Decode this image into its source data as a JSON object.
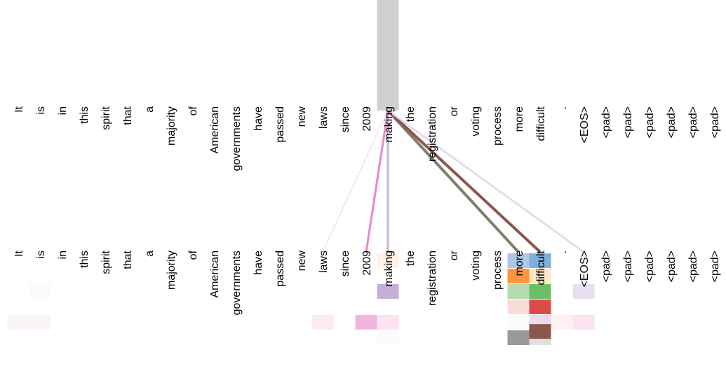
{
  "tokens": [
    "It",
    "is",
    "in",
    "this",
    "spirit",
    "that",
    "a",
    "majority",
    "of",
    "American",
    "governments",
    "have",
    "passed",
    "new",
    "laws",
    "since",
    "2009",
    "making",
    "the",
    "registration",
    "or",
    "voting",
    "process",
    "more",
    "difficult",
    ".",
    "<EOS>",
    "<pad>",
    "<pad>",
    "<pad>",
    "<pad>",
    "<pad>",
    "<pad>"
  ],
  "selected_index": 17,
  "attention_links": [
    {
      "target": 14,
      "color": "#f7d9ec",
      "weight": 0.35
    },
    {
      "target": 16,
      "color": "#e377c2",
      "weight": 0.7
    },
    {
      "target": 17,
      "color": "#c5b0d5",
      "weight": 0.8
    },
    {
      "target": 23,
      "color": "#7f7f6e",
      "weight": 1.0
    },
    {
      "target": 24,
      "color": "#8c564b",
      "weight": 1.0
    },
    {
      "target": 26,
      "color": "#e2cde8",
      "weight": 0.6
    }
  ],
  "heatmap_cells": [
    {
      "col": 1,
      "row": 2,
      "color": "#fafafa"
    },
    {
      "col": 0,
      "row": 4,
      "color": "#fbf4f7"
    },
    {
      "col": 1,
      "row": 4,
      "color": "#fbf4f7"
    },
    {
      "col": 14,
      "row": 4,
      "color": "#fbeaf3"
    },
    {
      "col": 17,
      "row": 0,
      "color": "#fdf1e8"
    },
    {
      "col": 17,
      "row": 2,
      "color": "#c5b0d5"
    },
    {
      "col": 16,
      "row": 4,
      "color": "#f2b6dd"
    },
    {
      "col": 17,
      "row": 4,
      "color": "#fbe3f1"
    },
    {
      "col": 17,
      "row": 5,
      "color": "#fbfbfb"
    },
    {
      "col": 23,
      "row": 0,
      "color": "#aec7e8"
    },
    {
      "col": 23,
      "row": 1,
      "color": "#ff9440"
    },
    {
      "col": 23,
      "row": 2,
      "color": "#b6dcae"
    },
    {
      "col": 23,
      "row": 3,
      "color": "#f7dcd8"
    },
    {
      "col": 23,
      "row": 4,
      "color": "#fafafa"
    },
    {
      "col": 23,
      "row": 5,
      "color": "#9a9a9a"
    },
    {
      "col": 24,
      "row": 0,
      "color": "#7fb0d8"
    },
    {
      "col": 24,
      "row": 1,
      "color": "#ffe6c6"
    },
    {
      "col": 24,
      "row": 2,
      "color": "#6dbf65"
    },
    {
      "col": 24,
      "row": 3,
      "color": "#dd4a4a"
    },
    {
      "col": 24,
      "row": 4,
      "color": "#e9dcef"
    },
    {
      "col": 24,
      "row": 5,
      "color": "#e0e0e0"
    },
    {
      "col": 24,
      "row": 4.6,
      "color": "#8c564b"
    },
    {
      "col": 25,
      "row": 4,
      "color": "#fdf1f6"
    },
    {
      "col": 26,
      "row": 4,
      "color": "#fbe3f1"
    },
    {
      "col": 26,
      "row": 2,
      "color": "#e8e0f0"
    }
  ]
}
